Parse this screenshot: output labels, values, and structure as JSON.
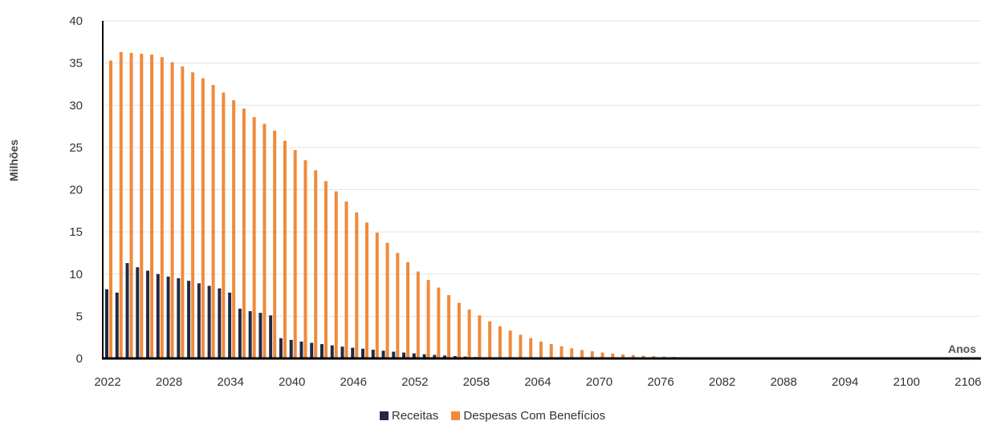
{
  "chart_data": {
    "type": "bar",
    "ylabel": "Milhões",
    "xlabel": "Anos",
    "ylim": [
      0,
      40
    ],
    "yticks": [
      "0",
      "5",
      "10",
      "15",
      "20",
      "25",
      "30",
      "35",
      "40"
    ],
    "xlim": [
      2022,
      2106
    ],
    "xticks": [
      "2022",
      "2028",
      "2034",
      "2040",
      "2046",
      "2052",
      "2058",
      "2064",
      "2070",
      "2076",
      "2082",
      "2088",
      "2094",
      "2100",
      "2106"
    ],
    "grid": true,
    "legend_position": "bottom",
    "categories": [
      2022,
      2023,
      2024,
      2025,
      2026,
      2027,
      2028,
      2029,
      2030,
      2031,
      2032,
      2033,
      2034,
      2035,
      2036,
      2037,
      2038,
      2039,
      2040,
      2041,
      2042,
      2043,
      2044,
      2045,
      2046,
      2047,
      2048,
      2049,
      2050,
      2051,
      2052,
      2053,
      2054,
      2055,
      2056,
      2057,
      2058,
      2059,
      2060,
      2061,
      2062,
      2063,
      2064,
      2065,
      2066,
      2067,
      2068,
      2069,
      2070,
      2071,
      2072,
      2073,
      2074,
      2075,
      2076,
      2077,
      2078,
      2079,
      2080,
      2081,
      2082,
      2083,
      2084,
      2085,
      2086,
      2087,
      2088,
      2089,
      2090,
      2091,
      2092,
      2093,
      2094,
      2095,
      2096,
      2097,
      2098,
      2099,
      2100,
      2101,
      2102,
      2103,
      2104,
      2105
    ],
    "series": [
      {
        "name": "Receitas",
        "color": "#1f2a44",
        "values": [
          8.2,
          7.8,
          11.3,
          10.8,
          10.4,
          10.0,
          9.7,
          9.5,
          9.2,
          8.9,
          8.6,
          8.3,
          7.8,
          5.9,
          5.6,
          5.4,
          5.1,
          2.4,
          2.2,
          2.0,
          1.85,
          1.7,
          1.55,
          1.4,
          1.27,
          1.15,
          1.03,
          0.92,
          0.8,
          0.7,
          0.6,
          0.5,
          0.42,
          0.35,
          0.28,
          0.22,
          0.17,
          0.13,
          0.1,
          0.08,
          0.06,
          0.05,
          0.04,
          0.03,
          0.02,
          0.02,
          0.01,
          0.01,
          0.01,
          0.01,
          0.01,
          0.01,
          0.01,
          0.0,
          0,
          0,
          0,
          0,
          0,
          0,
          0,
          0,
          0,
          0,
          0,
          0,
          0,
          0,
          0,
          0,
          0,
          0,
          0,
          0,
          0,
          0,
          0,
          0,
          0,
          0,
          0,
          0,
          0,
          0
        ]
      },
      {
        "name": "Despesas Com Benefícios",
        "color": "#f08a3a",
        "values": [
          35.3,
          36.3,
          36.2,
          36.1,
          36.0,
          35.7,
          35.1,
          34.6,
          33.9,
          33.2,
          32.4,
          31.5,
          30.6,
          29.6,
          28.6,
          27.8,
          27.0,
          25.8,
          24.7,
          23.5,
          22.3,
          21.0,
          19.8,
          18.6,
          17.3,
          16.1,
          14.9,
          13.7,
          12.5,
          11.4,
          10.3,
          9.3,
          8.4,
          7.5,
          6.6,
          5.8,
          5.1,
          4.4,
          3.8,
          3.3,
          2.8,
          2.4,
          2.0,
          1.7,
          1.45,
          1.2,
          1.0,
          0.85,
          0.7,
          0.58,
          0.48,
          0.4,
          0.33,
          0.28,
          0.22,
          0.18,
          0.15,
          0.12,
          0.1,
          0.08,
          0.06,
          0.05,
          0.04,
          0.03,
          0.03,
          0.02,
          0.02,
          0.02,
          0.01,
          0.01,
          0.01,
          0.01,
          0.01,
          0.01,
          0.01,
          0.0,
          0.0,
          0.0,
          0.0,
          0.0,
          0.0,
          0.0,
          0.0,
          0.0
        ]
      }
    ]
  }
}
